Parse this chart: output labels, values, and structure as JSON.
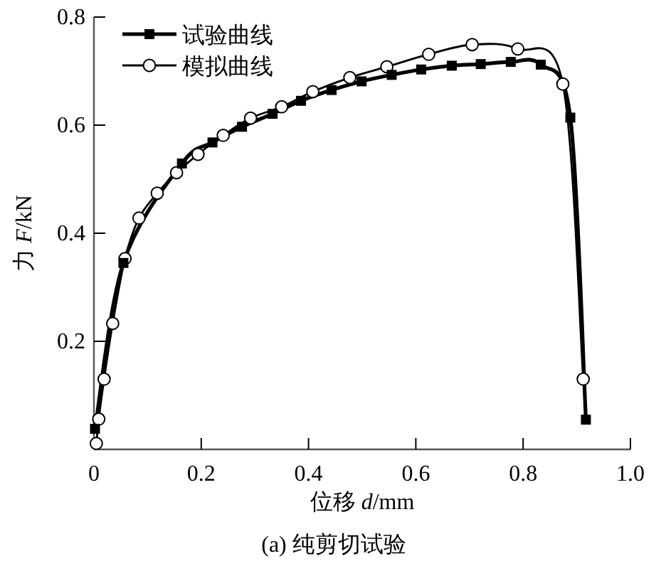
{
  "chart_data": {
    "type": "line",
    "title": "(a) 纯剪切试验",
    "xlabel": "位移 *d*/mm",
    "ylabel": "力 *F*/kN",
    "xlim": [
      0,
      1.0
    ],
    "ylim": [
      0,
      0.8
    ],
    "xticks": [
      0,
      0.2,
      0.4,
      0.6,
      0.8,
      {
        "value": 1.0,
        "label": "1.0"
      }
    ],
    "yticks": [
      0.2,
      0.4,
      0.6,
      0.8
    ],
    "legend": "top left",
    "grid": false,
    "series": [
      {
        "name": "试验曲线",
        "color": "#000000",
        "marker": "square",
        "x": [
          0.002,
          0.055,
          0.164,
          0.221,
          0.276,
          0.333,
          0.386,
          0.443,
          0.499,
          0.555,
          0.61,
          0.667,
          0.721,
          0.777,
          0.833,
          0.888,
          0.917
        ],
        "values": [
          0.038,
          0.345,
          0.529,
          0.568,
          0.597,
          0.621,
          0.645,
          0.665,
          0.681,
          0.693,
          0.703,
          0.71,
          0.713,
          0.717,
          0.712,
          0.614,
          0.055
        ]
      },
      {
        "name": "模拟曲线",
        "color": "#000000",
        "marker": "circle",
        "x": [
          0.0045,
          0.009,
          0.019,
          0.035,
          0.058,
          0.084,
          0.118,
          0.154,
          0.194,
          0.241,
          0.292,
          0.35,
          0.408,
          0.477,
          0.546,
          0.624,
          0.705,
          0.79,
          0.874,
          0.912
        ],
        "values": [
          0.011,
          0.056,
          0.13,
          0.233,
          0.353,
          0.428,
          0.474,
          0.512,
          0.546,
          0.581,
          0.613,
          0.634,
          0.662,
          0.688,
          0.708,
          0.731,
          0.749,
          0.741,
          0.676,
          0.13
        ]
      }
    ]
  }
}
